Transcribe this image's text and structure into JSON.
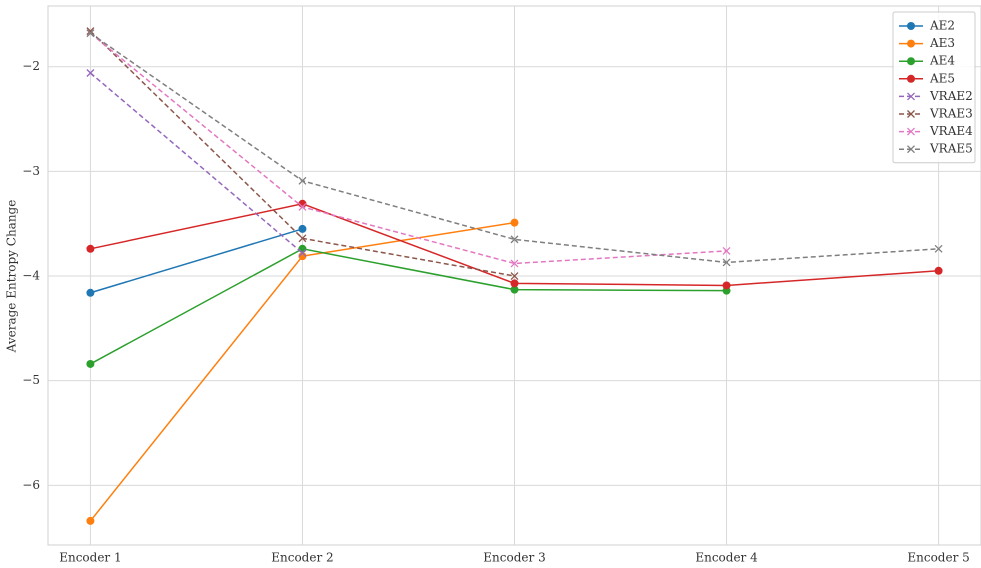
{
  "chart_data": {
    "type": "line",
    "ylabel": "Average Entropy Change",
    "categories": [
      "Encoder 1",
      "Encoder 2",
      "Encoder 3",
      "Encoder 4",
      "Encoder 5"
    ],
    "ylim": [
      -6.57,
      -1.42
    ],
    "yticks": [
      {
        "value": -6,
        "label": "−6"
      },
      {
        "value": -5,
        "label": "−5"
      },
      {
        "value": -4,
        "label": "−4"
      },
      {
        "value": -3,
        "label": "−3"
      },
      {
        "value": -2,
        "label": "−2"
      }
    ],
    "grid": true,
    "legend": "upper right",
    "series": [
      {
        "name": "AE2",
        "color": "#1f77b4",
        "linestyle": "solid",
        "marker": "o",
        "values": [
          -4.16,
          -3.55,
          null,
          null,
          null
        ]
      },
      {
        "name": "AE3",
        "color": "#ff7f0e",
        "linestyle": "solid",
        "marker": "o",
        "values": [
          -6.34,
          -3.81,
          -3.49,
          null,
          null
        ]
      },
      {
        "name": "AE4",
        "color": "#2ca02c",
        "linestyle": "solid",
        "marker": "o",
        "values": [
          -4.84,
          -3.74,
          -4.13,
          -4.14,
          null
        ]
      },
      {
        "name": "AE5",
        "color": "#d62728",
        "linestyle": "solid",
        "marker": "o",
        "values": [
          -3.74,
          -3.31,
          -4.07,
          -4.09,
          -3.95
        ]
      },
      {
        "name": "VRAE2",
        "color": "#9467bd",
        "linestyle": "dashed",
        "marker": "x",
        "values": [
          -2.06,
          -3.78,
          null,
          null,
          null
        ]
      },
      {
        "name": "VRAE3",
        "color": "#8c564b",
        "linestyle": "dashed",
        "marker": "x",
        "values": [
          -1.66,
          -3.64,
          -4.0,
          null,
          null
        ]
      },
      {
        "name": "VRAE4",
        "color": "#e377c2",
        "linestyle": "dashed",
        "marker": "x",
        "values": [
          -1.68,
          -3.34,
          -3.88,
          -3.76,
          null
        ]
      },
      {
        "name": "VRAE5",
        "color": "#7f7f7f",
        "linestyle": "dashed",
        "marker": "x",
        "values": [
          -1.68,
          -3.09,
          -3.65,
          -3.87,
          -3.74
        ]
      }
    ]
  }
}
